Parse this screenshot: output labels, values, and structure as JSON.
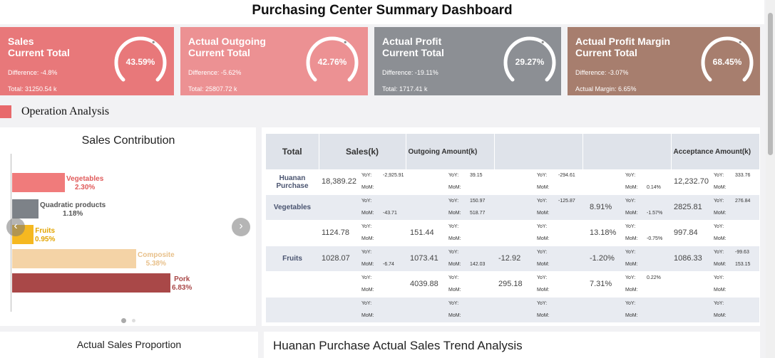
{
  "page": {
    "title": "Purchasing Center Summary Dashboard"
  },
  "kpis": [
    {
      "line1": "Sales",
      "line2": "Current Total",
      "diff": "Difference: -4.8%",
      "total": "Total: 31250.54 k",
      "pct": "43.59%",
      "color": "#e8787a"
    },
    {
      "line1": "Actual Outgoing",
      "line2": "Current Total",
      "diff": "Difference: -5.62%",
      "total": "Total: 25807.72 k",
      "pct": "42.76%",
      "color": "#ec9193"
    },
    {
      "line1": "Actual Profit",
      "line2": "Current Total",
      "diff": "Difference: -19.11%",
      "total": "Total: 1717.41 k",
      "pct": "29.27%",
      "color": "#8c8f94"
    },
    {
      "line1": "Actual Profit Margin",
      "line2": "Current Total",
      "diff": "Difference: -3.07%",
      "total": "Actual Margin: 6.65%",
      "pct": "68.45%",
      "color": "#a77e6e"
    }
  ],
  "section": {
    "label": "Operation Analysis"
  },
  "sales_contribution": {
    "title": "Sales Contribution",
    "items": [
      {
        "name": "Vegetables",
        "value": "2.30%",
        "color": "#f07b7b",
        "text_color": "#e05a5a"
      },
      {
        "name": "Quadratic products",
        "value": "1.18%",
        "color": "#7d8288",
        "text_color": "#555"
      },
      {
        "name": "Fruits",
        "value": "0.95%",
        "color": "#f5b820",
        "text_color": "#e3a400"
      },
      {
        "name": "Composite",
        "value": "5.38%",
        "color": "#f4d3a6",
        "text_color": "#e8c08a"
      },
      {
        "name": "Pork",
        "value": "6.83%",
        "color": "#a94848",
        "text_color": "#a94848"
      }
    ],
    "prev": "‹",
    "next": "›"
  },
  "table": {
    "headers": [
      "Total",
      "Sales(k)",
      "Outgoing Amount(k)",
      "",
      "",
      "Acceptance Amount(k)"
    ],
    "yoy": "YoY:",
    "mom": "MoM:",
    "rows": [
      {
        "label": "Huanan Purchase",
        "cells": [
          {
            "main": "18,389.22",
            "yoy": "-2,925.91",
            "mom": ""
          },
          {
            "main": "",
            "yoy": "39.15",
            "mom": ""
          },
          {
            "main": "",
            "yoy": "-294.61",
            "mom": ""
          },
          {
            "main": "",
            "yoy": "",
            "mom": "0.14%"
          },
          {
            "main": "12,232.70",
            "yoy": "333.76",
            "mom": ""
          }
        ]
      },
      {
        "label": "Vegetables",
        "cells": [
          {
            "main": "",
            "yoy": "",
            "mom": "-43.71"
          },
          {
            "main": "",
            "yoy": "150.97",
            "mom": "518.77"
          },
          {
            "main": "",
            "yoy": "-125.87",
            "mom": ""
          },
          {
            "main": "8.91%",
            "yoy": "",
            "mom": "-1.57%"
          },
          {
            "main": "2825.81",
            "yoy": "276.84",
            "mom": ""
          }
        ]
      },
      {
        "label": "",
        "cells": [
          {
            "main": "1124.78",
            "yoy": "",
            "mom": ""
          },
          {
            "main": "151.44",
            "yoy": "",
            "mom": ""
          },
          {
            "main": "",
            "yoy": "",
            "mom": ""
          },
          {
            "main": "13.18%",
            "yoy": "",
            "mom": "-0.75%"
          },
          {
            "main": "997.84",
            "yoy": "",
            "mom": ""
          }
        ]
      },
      {
        "label": "Fruits",
        "cells": [
          {
            "main": "1028.07",
            "yoy": "",
            "mom": "-6.74"
          },
          {
            "main": "1073.41",
            "yoy": "",
            "mom": "142.03"
          },
          {
            "main": "-12.92",
            "yoy": "",
            "mom": ""
          },
          {
            "main": "-1.20%",
            "yoy": "",
            "mom": ""
          },
          {
            "main": "1086.33",
            "yoy": "-99.63",
            "mom": "153.15"
          }
        ]
      },
      {
        "label": "",
        "cells": [
          {
            "main": "",
            "yoy": "",
            "mom": ""
          },
          {
            "main": "4039.88",
            "yoy": "",
            "mom": ""
          },
          {
            "main": "295.18",
            "yoy": "",
            "mom": ""
          },
          {
            "main": "7.31%",
            "yoy": "0.22%",
            "mom": ""
          },
          {
            "main": "",
            "yoy": "",
            "mom": ""
          }
        ]
      },
      {
        "label": "",
        "cells": [
          {
            "main": "",
            "yoy": "",
            "mom": ""
          },
          {
            "main": "",
            "yoy": "",
            "mom": ""
          },
          {
            "main": "",
            "yoy": "",
            "mom": ""
          },
          {
            "main": "",
            "yoy": "",
            "mom": ""
          },
          {
            "main": "",
            "yoy": "",
            "mom": ""
          }
        ]
      }
    ]
  },
  "bottom": {
    "left_title": "Actual Sales Proportion",
    "right_title": "Huanan Purchase Actual Sales Trend Analysis"
  }
}
